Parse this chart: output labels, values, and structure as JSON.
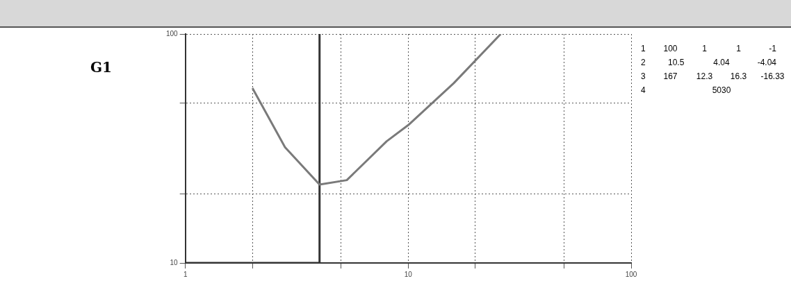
{
  "chart_data": {
    "type": "line",
    "annotations": [
      "G1",
      "1 100 1 1 -1",
      "2 10.5 4.04 -4.04",
      "3 167 12.3 16.3 -16.33",
      "4 5030"
    ],
    "xlim": [
      1,
      100
    ],
    "ylim": [
      10,
      100
    ],
    "xticks": [
      1,
      {
        "value": 2,
        "label": null
      },
      {
        "value": 5,
        "label": null
      },
      10,
      {
        "value": 20,
        "label": null
      },
      {
        "value": 50,
        "label": null
      },
      100
    ],
    "yticks": [
      10,
      {
        "value": 20,
        "label": null
      },
      {
        "value": 50,
        "label": null
      },
      100
    ],
    "log": "xy",
    "grid": true,
    "legend": false,
    "marker": "none",
    "line_style": "solid",
    "series": [
      {
        "color": "#7a7a7a",
        "x": [
          2,
          2.8,
          4,
          5.3,
          8,
          10,
          16,
          26
        ],
        "values": [
          58,
          32,
          22,
          23,
          34,
          40,
          61,
          100
        ]
      },
      {
        "color": "#333333",
        "x": [
          1,
          4,
          4
        ],
        "values": [
          10,
          10,
          100
        ]
      }
    ]
  }
}
